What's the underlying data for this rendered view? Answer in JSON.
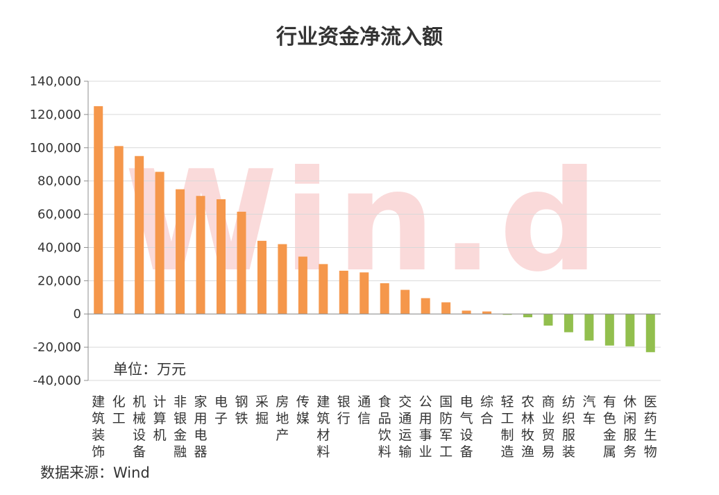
{
  "chart_data": {
    "type": "bar",
    "title": "行业资金净流入额",
    "unit_note": "单位：万元",
    "source": "数据来源：Wind",
    "watermark": "Win.d",
    "ylim": [
      -40000,
      140000
    ],
    "ytick_step": 20000,
    "ytick_labels": [
      "-40,000",
      "-20,000",
      "0",
      "20,000",
      "40,000",
      "60,000",
      "80,000",
      "100,000",
      "120,000",
      "140,000"
    ],
    "grid": true,
    "colors": {
      "positive": "#f5974b",
      "negative": "#92bf4e",
      "grid": "#d9d9d9",
      "axis": "#8c8c8c"
    },
    "categories": [
      "建筑装饰",
      "化工",
      "机械设备",
      "计算机",
      "非银金融",
      "家用电器",
      "电子",
      "钢铁",
      "采掘",
      "房地产",
      "传媒",
      "建筑材料",
      "银行",
      "通信",
      "食品饮料",
      "交通运输",
      "公用事业",
      "国防军工",
      "电气设备",
      "综合",
      "轻工制造",
      "农林牧渔",
      "商业贸易",
      "纺织服装",
      "汽车",
      "有色金属",
      "休闲服务",
      "医药生物"
    ],
    "values": [
      125000,
      101000,
      95000,
      85500,
      75000,
      71000,
      69000,
      61500,
      44000,
      42000,
      34500,
      30000,
      26000,
      25000,
      18500,
      14500,
      9500,
      7000,
      2000,
      1500,
      -500,
      -2000,
      -7000,
      -11000,
      -16000,
      -19000,
      -19500,
      -23000
    ]
  }
}
